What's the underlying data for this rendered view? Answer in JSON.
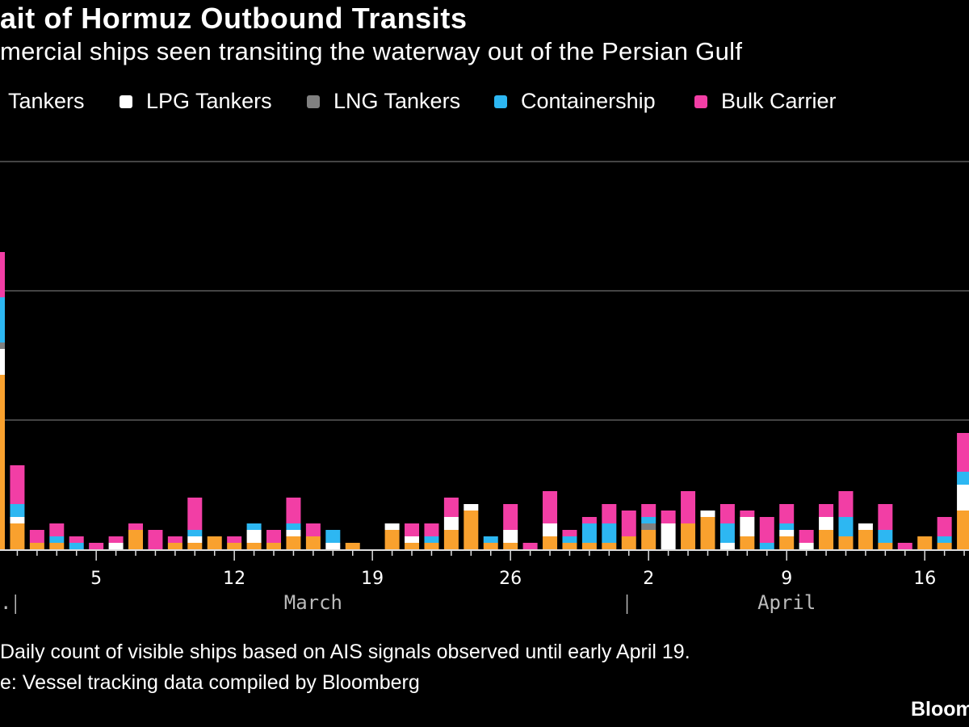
{
  "title": "ait of Hormuz Outbound Transits",
  "subtitle": "mercial ships seen transiting the waterway out of the Persian Gulf",
  "legend": [
    {
      "label": "Tankers",
      "color": "#f9a12e"
    },
    {
      "label": "LPG Tankers",
      "color": "#ffffff"
    },
    {
      "label": "LNG Tankers",
      "color": "#808080"
    },
    {
      "label": "Containership",
      "color": "#2db7f2"
    },
    {
      "label": "Bulk Carrier",
      "color": "#f23ea5"
    }
  ],
  "chart_data": {
    "type": "bar",
    "stacked": true,
    "grid": true,
    "ylim": [
      0,
      60
    ],
    "gridlines": [
      20,
      40,
      60
    ],
    "categories": [
      "Feb 28",
      "Mar 1",
      "Mar 2",
      "Mar 3",
      "Mar 4",
      "Mar 5",
      "Mar 6",
      "Mar 7",
      "Mar 8",
      "Mar 9",
      "Mar 10",
      "Mar 11",
      "Mar 12",
      "Mar 13",
      "Mar 14",
      "Mar 15",
      "Mar 16",
      "Mar 17",
      "Mar 18",
      "Mar 19",
      "Mar 20",
      "Mar 21",
      "Mar 22",
      "Mar 23",
      "Mar 24",
      "Mar 25",
      "Mar 26",
      "Mar 27",
      "Mar 28",
      "Mar 29",
      "Mar 30",
      "Mar 31",
      "Apr 1",
      "Apr 2",
      "Apr 3",
      "Apr 4",
      "Apr 5",
      "Apr 6",
      "Apr 7",
      "Apr 8",
      "Apr 9",
      "Apr 10",
      "Apr 11",
      "Apr 12",
      "Apr 13",
      "Apr 14",
      "Apr 15",
      "Apr 16",
      "Apr 17",
      "Apr 18"
    ],
    "series": [
      {
        "name": "Tankers",
        "color": "#f9a12e",
        "values": [
          27,
          4,
          1,
          1,
          0,
          0,
          0,
          3,
          0,
          1,
          1,
          2,
          1,
          1,
          1,
          2,
          2,
          0,
          1,
          0,
          3,
          1,
          1,
          3,
          6,
          1,
          1,
          0,
          2,
          1,
          1,
          1,
          2,
          3,
          0,
          4,
          5,
          0,
          2,
          0,
          2,
          0,
          3,
          2,
          3,
          1,
          0,
          2,
          1,
          6
        ]
      },
      {
        "name": "LPG Tankers",
        "color": "#ffffff",
        "values": [
          4,
          1,
          0,
          0,
          0,
          0,
          1,
          0,
          0,
          0,
          1,
          0,
          0,
          2,
          0,
          1,
          0,
          1,
          0,
          0,
          1,
          1,
          0,
          2,
          1,
          0,
          2,
          0,
          2,
          0,
          0,
          0,
          0,
          0,
          4,
          0,
          1,
          1,
          3,
          0,
          1,
          1,
          2,
          0,
          1,
          0,
          0,
          0,
          0,
          4
        ]
      },
      {
        "name": "LNG Tankers",
        "color": "#808080",
        "values": [
          1,
          0,
          0,
          0,
          0,
          0,
          0,
          0,
          0,
          0,
          0,
          0,
          0,
          0,
          0,
          0,
          0,
          0,
          0,
          0,
          0,
          0,
          0,
          0,
          0,
          0,
          0,
          0,
          0,
          0,
          0,
          0,
          0,
          1,
          0,
          0,
          0,
          0,
          0,
          0,
          0,
          0,
          0,
          0,
          0,
          0,
          0,
          0,
          0,
          0
        ]
      },
      {
        "name": "Containership",
        "color": "#2db7f2",
        "values": [
          7,
          2,
          0,
          1,
          1,
          0,
          0,
          0,
          0,
          0,
          1,
          0,
          0,
          1,
          0,
          1,
          0,
          2,
          0,
          0,
          0,
          0,
          1,
          0,
          0,
          1,
          0,
          0,
          0,
          1,
          3,
          3,
          0,
          1,
          0,
          0,
          0,
          3,
          0,
          1,
          1,
          0,
          0,
          3,
          0,
          2,
          0,
          0,
          1,
          2
        ]
      },
      {
        "name": "Bulk Carrier",
        "color": "#f23ea5",
        "values": [
          7,
          6,
          2,
          2,
          1,
          1,
          1,
          1,
          3,
          1,
          5,
          0,
          1,
          0,
          2,
          4,
          2,
          0,
          0,
          0,
          0,
          2,
          2,
          3,
          0,
          0,
          4,
          1,
          5,
          1,
          1,
          3,
          4,
          2,
          2,
          5,
          0,
          3,
          1,
          4,
          3,
          2,
          2,
          4,
          0,
          4,
          1,
          0,
          3,
          6
        ]
      }
    ],
    "x_tick_labels": [
      {
        "label": "5",
        "date": "Mar 5"
      },
      {
        "label": "12",
        "date": "Mar 12"
      },
      {
        "label": "19",
        "date": "Mar 19"
      },
      {
        "label": "26",
        "date": "Mar 26"
      },
      {
        "label": "2",
        "date": "Apr 2"
      },
      {
        "label": "9",
        "date": "Apr 9"
      },
      {
        "label": "16",
        "date": "Apr 16"
      }
    ],
    "month_labels": [
      {
        "label": ".",
        "date": "Feb 28"
      },
      {
        "label": "March",
        "date": "Mar 16"
      },
      {
        "label": "April",
        "date": "Apr 9"
      }
    ]
  },
  "footer": {
    "note": "Daily count of visible ships based on AIS signals observed until early April 19.",
    "source": "e: Vessel tracking data compiled by Bloomberg",
    "logo": "Bloom"
  }
}
